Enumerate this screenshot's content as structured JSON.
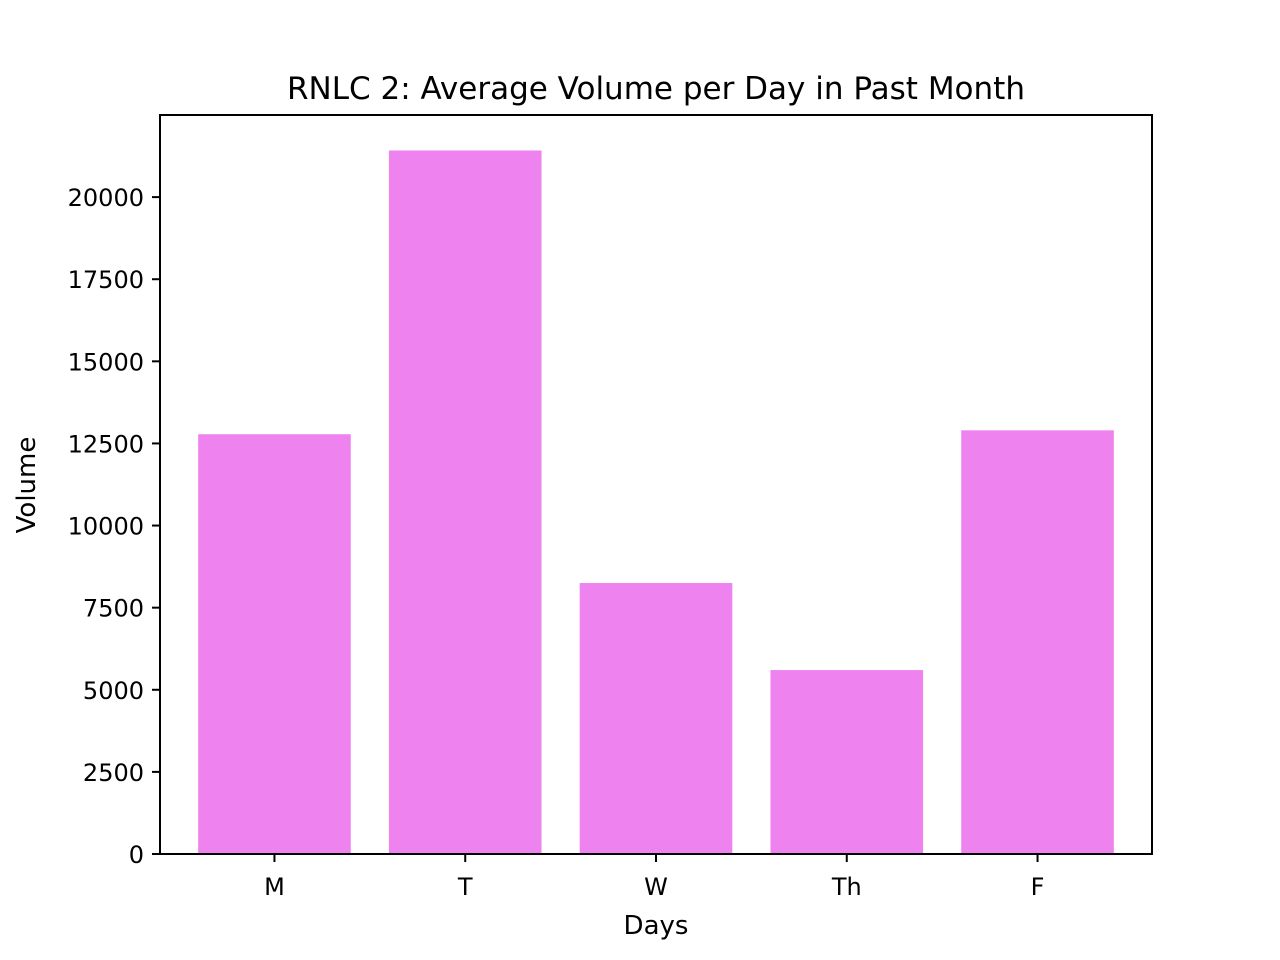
{
  "chart_data": {
    "type": "bar",
    "title": "RNLC 2: Average Volume per Day in Past Month",
    "xlabel": "Days",
    "ylabel": "Volume",
    "categories": [
      "M",
      "T",
      "W",
      "Th",
      "F"
    ],
    "values": [
      12780,
      21420,
      8250,
      5600,
      12900
    ],
    "ylim": [
      0,
      22500
    ],
    "yticks": [
      0,
      2500,
      5000,
      7500,
      10000,
      12500,
      15000,
      17500,
      20000
    ],
    "grid": false,
    "bar_color": "#ee82ee"
  }
}
